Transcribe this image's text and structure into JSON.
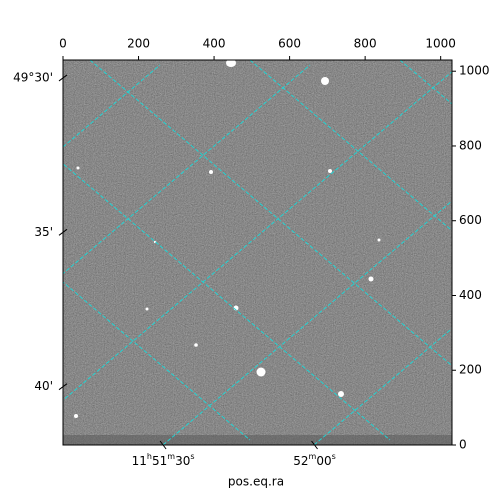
{
  "chart_data": {
    "type": "image",
    "xlabel": "pos.eq.ra",
    "xlim": [
      0,
      1030
    ],
    "ylim": [
      0,
      1030
    ],
    "xticks": [
      0,
      200,
      400,
      600,
      800,
      1000
    ],
    "yticks": [
      0,
      200,
      400,
      600,
      800,
      1000
    ],
    "ra_ticks": [
      {
        "value": 265,
        "label": "11h51m30s"
      },
      {
        "value": 666,
        "label": "52m00s"
      }
    ],
    "dec_ticks": [
      {
        "value": 982,
        "label": "49°30'"
      },
      {
        "value": 569,
        "label": "35'"
      },
      {
        "value": 156,
        "label": "40'"
      }
    ],
    "grid_color": "#22d3d3"
  }
}
